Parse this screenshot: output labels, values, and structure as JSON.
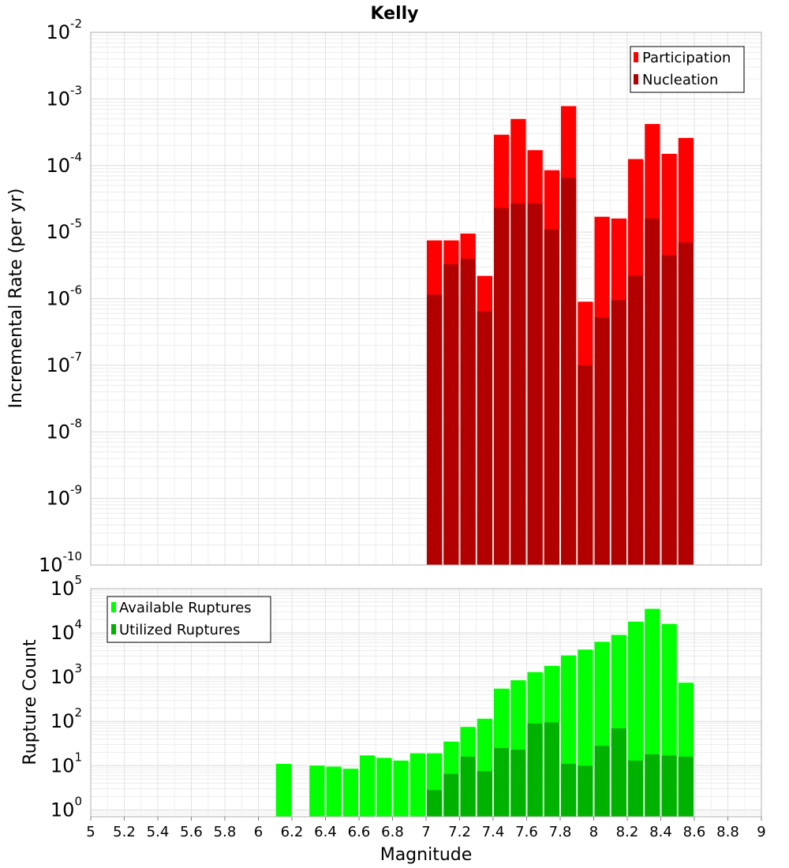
{
  "chart_data": [
    {
      "type": "bar",
      "title": "Kelly",
      "ylabel": "Incremental Rate (per yr)",
      "xlabel": "",
      "yscale": "log",
      "ylim": [
        1e-10,
        0.01
      ],
      "xlim": [
        5,
        9
      ],
      "grid": true,
      "legend_position": "top-right",
      "bar_width": 0.1,
      "x": [
        7.05,
        7.15,
        7.25,
        7.35,
        7.45,
        7.55,
        7.65,
        7.75,
        7.85,
        7.95,
        8.05,
        8.15,
        8.25,
        8.35,
        8.45,
        8.55
      ],
      "series": [
        {
          "name": "Participation",
          "color": "#ff0000",
          "values": [
            7.5e-06,
            7.5e-06,
            9.5e-06,
            2.2e-06,
            0.00029,
            0.0005,
            0.00017,
            8.5e-05,
            0.00078,
            9e-07,
            1.7e-05,
            1.6e-05,
            0.000125,
            0.00042,
            0.00015,
            0.00026
          ]
        },
        {
          "name": "Nucleation",
          "color": "#b20000",
          "values": [
            1.15e-06,
            3.3e-06,
            4e-06,
            6.5e-07,
            2.3e-05,
            2.7e-05,
            2.7e-05,
            1.1e-05,
            6.5e-05,
            1e-07,
            5.2e-07,
            9.5e-07,
            2.2e-06,
            1.6e-05,
            4.5e-06,
            7e-06
          ]
        }
      ],
      "y_ticks": [
        {
          "base": "10",
          "exp": "-10"
        },
        {
          "base": "10",
          "exp": "-9"
        },
        {
          "base": "10",
          "exp": "-8"
        },
        {
          "base": "10",
          "exp": "-7"
        },
        {
          "base": "10",
          "exp": "-6"
        },
        {
          "base": "10",
          "exp": "-5"
        },
        {
          "base": "10",
          "exp": "-4"
        },
        {
          "base": "10",
          "exp": "-3"
        },
        {
          "base": "10",
          "exp": "-2"
        }
      ]
    },
    {
      "type": "bar",
      "title": "",
      "ylabel": "Rupture Count",
      "xlabel": "Magnitude",
      "yscale": "log",
      "ylim": [
        0.7,
        100000
      ],
      "xlim": [
        5,
        9
      ],
      "grid": true,
      "legend_position": "top-left",
      "bar_width": 0.1,
      "x": [
        6.15,
        6.35,
        6.45,
        6.55,
        6.65,
        6.75,
        6.85,
        6.95,
        7.05,
        7.15,
        7.25,
        7.35,
        7.45,
        7.55,
        7.65,
        7.75,
        7.85,
        7.95,
        8.05,
        8.15,
        8.25,
        8.35,
        8.45,
        8.55
      ],
      "series": [
        {
          "name": "Available Ruptures",
          "color": "#00ff00",
          "values": [
            11,
            10,
            9.5,
            8.5,
            17,
            15,
            13,
            19,
            19,
            35,
            75,
            115,
            550,
            850,
            1300,
            1800,
            3100,
            4200,
            6300,
            9000,
            18000,
            35000,
            16000,
            750
          ]
        },
        {
          "name": "Utilized Ruptures",
          "color": "#00b200",
          "values": [
            null,
            null,
            null,
            null,
            null,
            null,
            null,
            null,
            2.8,
            6.5,
            16,
            7.5,
            25,
            23,
            90,
            95,
            11,
            10,
            28,
            70,
            13,
            18,
            17,
            16
          ]
        }
      ],
      "y_ticks": [
        {
          "base": "10",
          "exp": "0"
        },
        {
          "base": "10",
          "exp": "1"
        },
        {
          "base": "10",
          "exp": "2"
        },
        {
          "base": "10",
          "exp": "3"
        },
        {
          "base": "10",
          "exp": "4"
        },
        {
          "base": "10",
          "exp": "5"
        }
      ],
      "x_ticks": [
        "5",
        "5.2",
        "5.4",
        "5.6",
        "5.8",
        "6",
        "6.2",
        "6.4",
        "6.6",
        "6.8",
        "7",
        "7.2",
        "7.4",
        "7.6",
        "7.8",
        "8",
        "8.2",
        "8.4",
        "8.6",
        "8.8",
        "9"
      ]
    }
  ]
}
